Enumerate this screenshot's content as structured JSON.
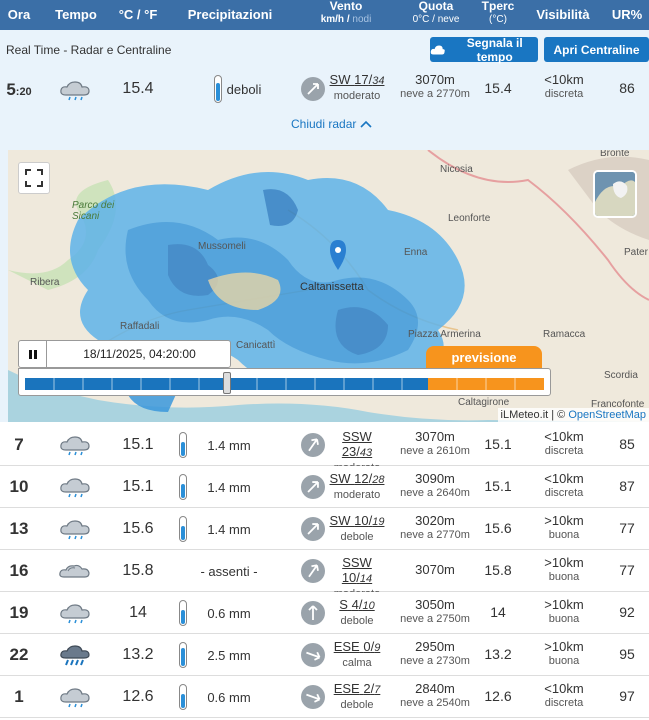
{
  "header": {
    "ora": "Ora",
    "tempo": "Tempo",
    "temp_unit": "°C / °F",
    "precip": "Precipitazioni",
    "vento": "Vento",
    "vento_unit_kmh": "km/h /",
    "vento_unit_nodi": "nodi",
    "quota": "Quota",
    "quota_sub": "0°C / neve",
    "tperc": "Tperc",
    "tperc_sub": "(°C)",
    "visibilita": "Visibilità",
    "ur": "UR%"
  },
  "realtime": {
    "title": "Real Time - Radar e Centraline",
    "segnala_btn": "Segnala il tempo",
    "apri_btn": "Apri Centraline",
    "hour": "5",
    "minute": ":20",
    "temp": "15.4",
    "precip": "deboli",
    "wind_dir": "SW",
    "wind_kmh": "17",
    "wind_knots": "34",
    "wind_desc": "moderato",
    "quota": "3070m",
    "neve": "neve a 2770m",
    "tperc": "15.4",
    "vis": "<10km",
    "vis_desc": "discreta",
    "ur": "86",
    "close_radar": "Chiudi radar"
  },
  "map": {
    "labels": {
      "nicosia": "Nicosia",
      "bronte": "Bronte",
      "parco_sicani": "Parco dei Sicani",
      "mussomeli": "Mussomeli",
      "leonforte": "Leonforte",
      "enna": "Enna",
      "ribera": "Ribera",
      "caltanissetta": "Caltanissetta",
      "raffadali": "Raffadali",
      "canicatti": "Canicattì",
      "piazza_armerina": "Piazza Armerina",
      "ramacca": "Ramacca",
      "pater": "Pater",
      "scordia": "Scordia",
      "caltagirone": "Caltagirone",
      "francofonte": "Francofonte"
    },
    "timestamp": "18/11/2025, 04:20:00",
    "previsione": "previsione",
    "attrib_left": "iLMeteo.it | © ",
    "attrib_link": "OpenStreetMap",
    "timeline_position_fraction": 0.39
  },
  "forecast": [
    {
      "hour": "7",
      "wx": "cloud-rain-icon",
      "temp": "15.1",
      "precip": "1.4 mm",
      "rain": true,
      "wind_dir": "SSW",
      "wind_kmh": "23",
      "wind_knots": "43",
      "wind_desc": "moderato",
      "quota": "3070m",
      "neve": "neve a 2610m",
      "tperc": "15.1",
      "vis": "<10km",
      "vis_desc": "discreta",
      "ur": "85"
    },
    {
      "hour": "10",
      "wx": "cloud-rain-icon",
      "temp": "15.1",
      "precip": "1.4 mm",
      "rain": true,
      "wind_dir": "SW",
      "wind_kmh": "12",
      "wind_knots": "28",
      "wind_desc": "moderato",
      "quota": "3090m",
      "neve": "neve a 2640m",
      "tperc": "15.1",
      "vis": "<10km",
      "vis_desc": "discreta",
      "ur": "87"
    },
    {
      "hour": "13",
      "wx": "cloud-rain-icon",
      "temp": "15.6",
      "precip": "1.4 mm",
      "rain": true,
      "wind_dir": "SW",
      "wind_kmh": "10",
      "wind_knots": "19",
      "wind_desc": "debole",
      "quota": "3020m",
      "neve": "neve a 2770m",
      "tperc": "15.6",
      "vis": ">10km",
      "vis_desc": "buona",
      "ur": "77"
    },
    {
      "hour": "16",
      "wx": "cloud-icon",
      "temp": "15.8",
      "precip": "- assenti -",
      "rain": false,
      "wind_dir": "SSW",
      "wind_kmh": "10",
      "wind_knots": "14",
      "wind_desc": "moderato",
      "quota": "3070m",
      "neve": "",
      "tperc": "15.8",
      "vis": ">10km",
      "vis_desc": "buona",
      "ur": "77"
    },
    {
      "hour": "19",
      "wx": "cloud-rain-icon",
      "temp": "14",
      "precip": "0.6 mm",
      "rain": true,
      "wind_dir": "S",
      "wind_kmh": "4",
      "wind_knots": "10",
      "wind_desc": "debole",
      "quota": "3050m",
      "neve": "neve a 2750m",
      "tperc": "14",
      "vis": ">10km",
      "vis_desc": "buona",
      "ur": "92"
    },
    {
      "hour": "22",
      "wx": "heavy-rain-icon",
      "temp": "13.2",
      "precip": "2.5 mm",
      "rain": true,
      "wind_dir": "ESE",
      "wind_kmh": "0",
      "wind_knots": "9",
      "wind_desc": "calma",
      "quota": "2950m",
      "neve": "neve a 2730m",
      "tperc": "13.2",
      "vis": ">10km",
      "vis_desc": "buona",
      "ur": "95"
    },
    {
      "hour": "1",
      "wx": "cloud-rain-icon",
      "temp": "12.6",
      "precip": "0.6 mm",
      "rain": true,
      "wind_dir": "ESE",
      "wind_kmh": "2",
      "wind_knots": "7",
      "wind_desc": "debole",
      "quota": "2840m",
      "neve": "neve a 2540m",
      "tperc": "12.6",
      "vis": "<10km",
      "vis_desc": "discreta",
      "ur": "97"
    }
  ],
  "colors": {
    "header_bg": "#3b6fa7",
    "realtime_bg": "#e9f3fb",
    "button_blue": "#1976c2",
    "previsione_orange": "#f7941d",
    "radar_blue": "#2a8fd8"
  }
}
